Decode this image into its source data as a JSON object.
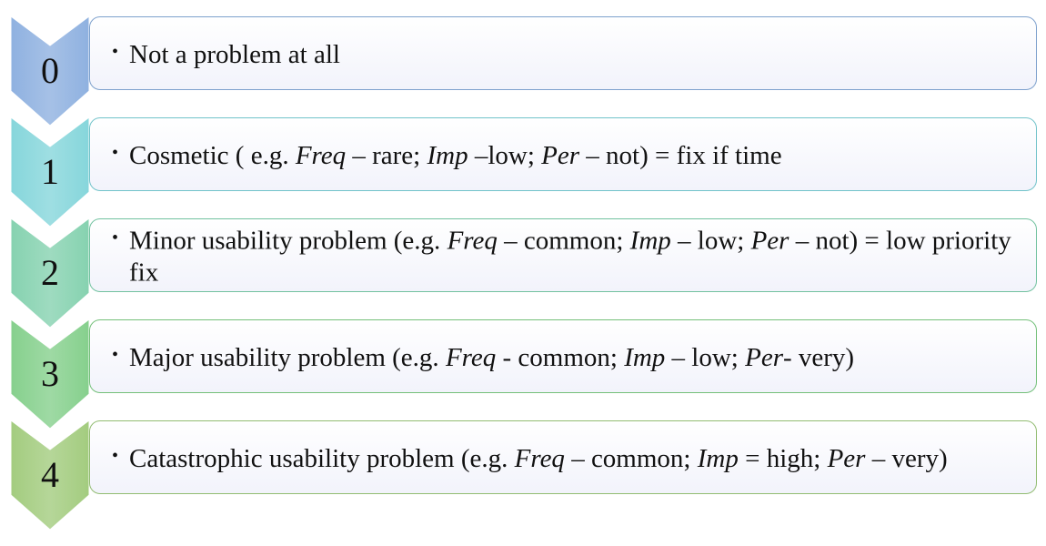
{
  "levels": [
    {
      "number": "0",
      "color": "#8fb1e0",
      "segments": [
        {
          "t": "Not a problem at all",
          "i": false
        }
      ]
    },
    {
      "number": "1",
      "color": "#86d6db",
      "segments": [
        {
          "t": "Cosmetic ( e.g. ",
          "i": false
        },
        {
          "t": "Freq",
          "i": true
        },
        {
          "t": " – rare; ",
          "i": false
        },
        {
          "t": "Imp",
          "i": true
        },
        {
          "t": " –low; ",
          "i": false
        },
        {
          "t": "Per",
          "i": true
        },
        {
          "t": " – not) = fix if time",
          "i": false
        }
      ]
    },
    {
      "number": "2",
      "color": "#86d2b0",
      "segments": [
        {
          "t": "Minor usability problem (e.g. ",
          "i": false
        },
        {
          "t": "Freq",
          "i": true
        },
        {
          "t": " – common; ",
          "i": false
        },
        {
          "t": "Imp",
          "i": true
        },
        {
          "t": " – low; ",
          "i": false
        },
        {
          "t": "Per",
          "i": true
        },
        {
          "t": " – not) = low priority fix",
          "i": false
        }
      ]
    },
    {
      "number": "3",
      "color": "#86d08d",
      "segments": [
        {
          "t": "Major usability problem (e.g. ",
          "i": false
        },
        {
          "t": "Freq",
          "i": true
        },
        {
          "t": " - common; ",
          "i": false
        },
        {
          "t": "Imp",
          "i": true
        },
        {
          "t": " – low; ",
          "i": false
        },
        {
          "t": "Per",
          "i": true
        },
        {
          "t": "- very)",
          "i": false
        }
      ]
    },
    {
      "number": "4",
      "color": "#a3cc7f",
      "segments": [
        {
          "t": "Catastrophic usability problem (e.g. ",
          "i": false
        },
        {
          "t": "Freq",
          "i": true
        },
        {
          "t": " – common; ",
          "i": false
        },
        {
          "t": "Imp",
          "i": true
        },
        {
          "t": " = high; ",
          "i": false
        },
        {
          "t": "Per",
          "i": true
        },
        {
          "t": " – very)",
          "i": false
        }
      ]
    }
  ]
}
